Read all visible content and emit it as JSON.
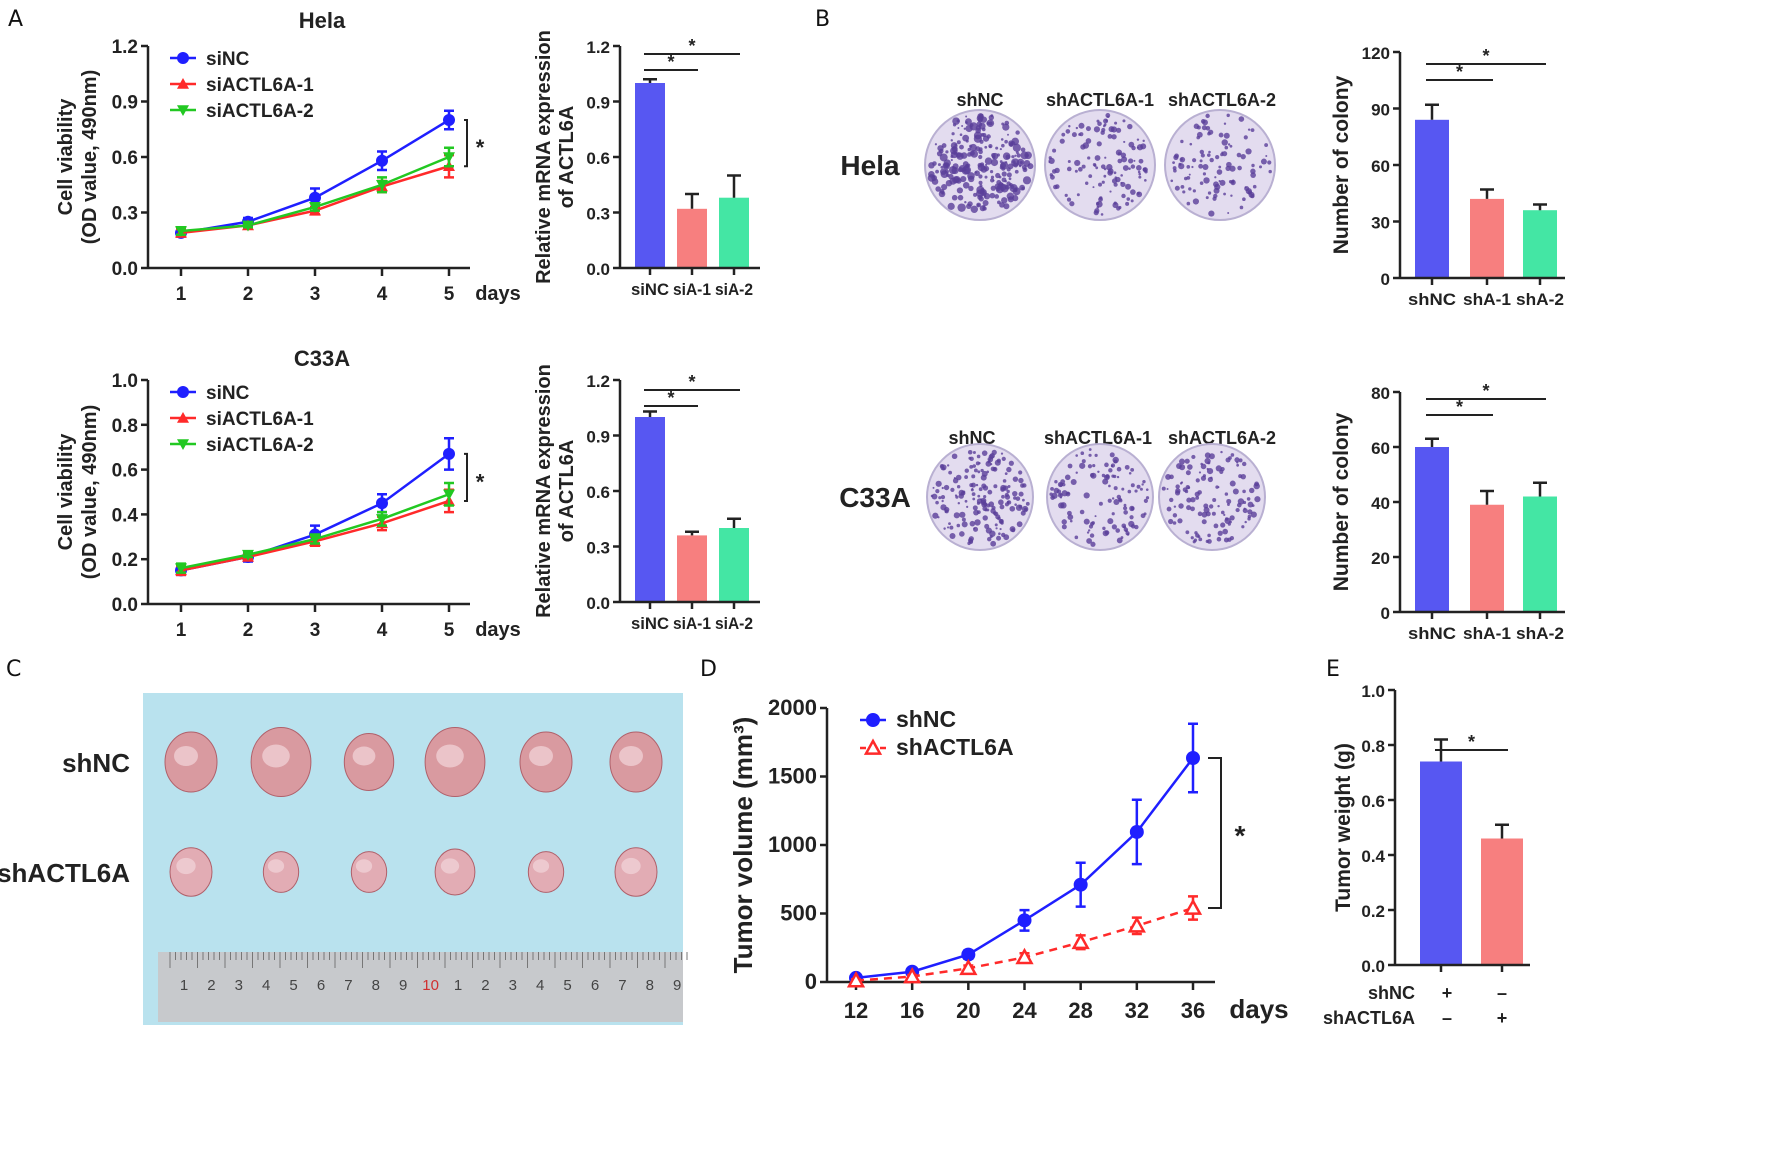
{
  "panel_letters": [
    "A",
    "B",
    "C",
    "D",
    "E"
  ],
  "colors": {
    "blue_line": "#1f1fff",
    "red_line": "#ff2a2a",
    "green_line": "#22c822",
    "bar_blue": "#5757f2",
    "bar_pink": "#f77f7f",
    "bar_green": "#44e6a4"
  },
  "chart_data": [
    {
      "id": "a-hela-viability",
      "type": "line",
      "title": "Hela",
      "xlabel": "days",
      "ylabel": [
        "Cell viability",
        "(OD value, 490nm)"
      ],
      "x": [
        1,
        2,
        3,
        4,
        5
      ],
      "ylim": [
        0,
        1.2
      ],
      "yticks": [
        "0.0",
        "0.3",
        "0.6",
        "0.9",
        "1.2"
      ],
      "legend": "top-left",
      "significance": "*",
      "series": [
        {
          "name": "siNC",
          "color": "#1f1fff",
          "marker": "circle",
          "values": [
            0.19,
            0.25,
            0.38,
            0.58,
            0.8
          ],
          "errors": [
            0.02,
            0.02,
            0.05,
            0.05,
            0.05
          ]
        },
        {
          "name": "siACTL6A-1",
          "color": "#ff2a2a",
          "marker": "triangle-up",
          "values": [
            0.19,
            0.23,
            0.31,
            0.44,
            0.55
          ],
          "errors": [
            0.02,
            0.01,
            0.02,
            0.03,
            0.06
          ]
        },
        {
          "name": "siACTL6A-2",
          "color": "#22c822",
          "marker": "triangle-down",
          "values": [
            0.2,
            0.23,
            0.33,
            0.45,
            0.6
          ],
          "errors": [
            0.02,
            0.01,
            0.02,
            0.04,
            0.05
          ]
        }
      ]
    },
    {
      "id": "a-hela-mrna",
      "type": "bar",
      "ylabel": [
        "Relative mRNA expression",
        "of ACTL6A"
      ],
      "categories": [
        "siNC",
        "siA-1",
        "siA-2"
      ],
      "values": [
        1.0,
        0.32,
        0.38
      ],
      "errors": [
        0.02,
        0.08,
        0.12
      ],
      "ylim": [
        0,
        1.2
      ],
      "yticks": [
        "0.0",
        "0.3",
        "0.6",
        "0.9",
        "1.2"
      ],
      "colors": [
        "#5757f2",
        "#f77f7f",
        "#44e6a4"
      ],
      "significance": [
        {
          "pair": [
            0,
            1
          ],
          "label": "*"
        },
        {
          "pair": [
            0,
            2
          ],
          "label": "*"
        }
      ]
    },
    {
      "id": "a-c33a-viability",
      "type": "line",
      "title": "C33A",
      "xlabel": "days",
      "ylabel": [
        "Cell viability",
        "(OD value, 490nm)"
      ],
      "x": [
        1,
        2,
        3,
        4,
        5
      ],
      "ylim": [
        0,
        1.0
      ],
      "yticks": [
        "0.0",
        "0.2",
        "0.4",
        "0.6",
        "0.8",
        "1.0"
      ],
      "legend": "top-left",
      "significance": "*",
      "series": [
        {
          "name": "siNC",
          "color": "#1f1fff",
          "marker": "circle",
          "values": [
            0.15,
            0.21,
            0.31,
            0.45,
            0.67
          ],
          "errors": [
            0.02,
            0.02,
            0.04,
            0.04,
            0.07
          ]
        },
        {
          "name": "siACTL6A-1",
          "color": "#ff2a2a",
          "marker": "triangle-up",
          "values": [
            0.15,
            0.21,
            0.28,
            0.36,
            0.46
          ],
          "errors": [
            0.02,
            0.01,
            0.02,
            0.03,
            0.05
          ]
        },
        {
          "name": "siACTL6A-2",
          "color": "#22c822",
          "marker": "triangle-down",
          "values": [
            0.16,
            0.22,
            0.29,
            0.38,
            0.49
          ],
          "errors": [
            0.02,
            0.01,
            0.02,
            0.03,
            0.05
          ]
        }
      ]
    },
    {
      "id": "a-c33a-mrna",
      "type": "bar",
      "ylabel": [
        "Relative mRNA expression",
        "of ACTL6A"
      ],
      "categories": [
        "siNC",
        "siA-1",
        "siA-2"
      ],
      "values": [
        1.0,
        0.36,
        0.4
      ],
      "errors": [
        0.03,
        0.02,
        0.05
      ],
      "ylim": [
        0,
        1.2
      ],
      "yticks": [
        "0.0",
        "0.3",
        "0.6",
        "0.9",
        "1.2"
      ],
      "colors": [
        "#5757f2",
        "#f77f7f",
        "#44e6a4"
      ],
      "significance": [
        {
          "pair": [
            0,
            1
          ],
          "label": "*"
        },
        {
          "pair": [
            0,
            2
          ],
          "label": "*"
        }
      ]
    },
    {
      "id": "b-hela-colony",
      "type": "bar",
      "ylabel": [
        "Number of colony"
      ],
      "categories": [
        "shNC",
        "shA-1",
        "shA-2"
      ],
      "values": [
        84,
        42,
        36
      ],
      "errors": [
        8,
        5,
        3
      ],
      "ylim": [
        0,
        120
      ],
      "yticks": [
        "0",
        "30",
        "60",
        "90",
        "120"
      ],
      "colors": [
        "#5757f2",
        "#f77f7f",
        "#44e6a4"
      ],
      "significance": [
        {
          "pair": [
            0,
            1
          ],
          "label": "*"
        },
        {
          "pair": [
            0,
            2
          ],
          "label": "*"
        }
      ]
    },
    {
      "id": "b-c33a-colony",
      "type": "bar",
      "ylabel": [
        "Number of colony"
      ],
      "categories": [
        "shNC",
        "shA-1",
        "shA-2"
      ],
      "values": [
        60,
        39,
        42
      ],
      "errors": [
        3,
        5,
        5
      ],
      "ylim": [
        0,
        80
      ],
      "yticks": [
        "0",
        "20",
        "40",
        "60",
        "80"
      ],
      "colors": [
        "#5757f2",
        "#f77f7f",
        "#44e6a4"
      ],
      "significance": [
        {
          "pair": [
            0,
            1
          ],
          "label": "*"
        },
        {
          "pair": [
            0,
            2
          ],
          "label": "*"
        }
      ]
    },
    {
      "id": "d-tumor-volume",
      "type": "line",
      "xlabel": "days",
      "ylabel": [
        "Tumor volume (mm³)"
      ],
      "x": [
        12,
        16,
        20,
        24,
        28,
        32,
        36
      ],
      "ylim": [
        0,
        2000
      ],
      "yticks": [
        "0",
        "500",
        "1000",
        "1500",
        "2000"
      ],
      "legend": "top-left",
      "significance": "*",
      "series": [
        {
          "name": "shNC",
          "color": "#1f1fff",
          "marker": "circle",
          "dash": false,
          "values": [
            30,
            75,
            200,
            450,
            710,
            1095,
            1635
          ],
          "errors": [
            15,
            15,
            30,
            75,
            160,
            235,
            250
          ]
        },
        {
          "name": "shACTL6A",
          "color": "#ff2a2a",
          "marker": "triangle-open",
          "dash": true,
          "values": [
            10,
            40,
            100,
            180,
            290,
            410,
            540
          ],
          "errors": [
            10,
            10,
            20,
            30,
            50,
            60,
            85
          ]
        }
      ]
    },
    {
      "id": "e-tumor-weight",
      "type": "bar",
      "ylabel": [
        "Tumor weight (g)"
      ],
      "categories": [
        "shNC",
        "shACTL6A"
      ],
      "values": [
        0.74,
        0.46
      ],
      "errors": [
        0.08,
        0.05
      ],
      "ylim": [
        0,
        1.0
      ],
      "yticks": [
        "0.0",
        "0.2",
        "0.4",
        "0.6",
        "0.8",
        "1.0"
      ],
      "colors": [
        "#5757f2",
        "#f77f7f"
      ],
      "significance": [
        {
          "pair": [
            0,
            1
          ],
          "label": "*"
        }
      ],
      "condition_table": [
        {
          "label": "shNC",
          "values": [
            "+",
            "–"
          ]
        },
        {
          "label": "shACTL6A",
          "values": [
            "–",
            "+"
          ]
        }
      ]
    }
  ],
  "colony_assay": {
    "columns": [
      "shNC",
      "shACTL6A-1",
      "shACTL6A-2"
    ],
    "rows": [
      {
        "label": "Hela",
        "counts": [
          84,
          42,
          36
        ]
      },
      {
        "label": "C33A",
        "counts": [
          60,
          39,
          42
        ]
      }
    ]
  },
  "xenograft_photo": {
    "rows": [
      "shNC",
      "shACTL6A"
    ],
    "ruler_numbers": [
      "1",
      "2",
      "3",
      "4",
      "5",
      "6",
      "7",
      "8",
      "9",
      "10",
      "1",
      "2",
      "3",
      "4",
      "5",
      "6",
      "7",
      "8",
      "9"
    ]
  }
}
